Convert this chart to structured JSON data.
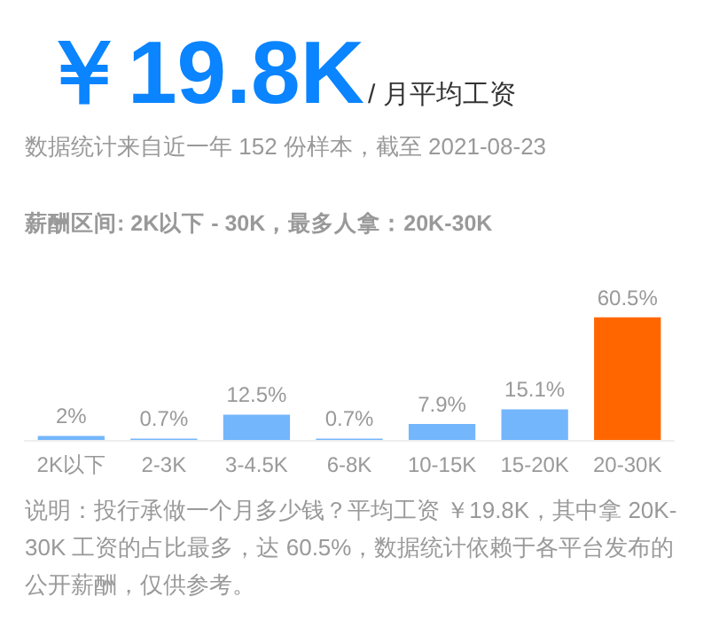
{
  "chart_data": {
    "type": "bar",
    "title": "￥19.8K",
    "subtitle": "/ 月平均工资",
    "annotations": [
      "数据统计来自近一年 152 份样本，截至 2021-08-23",
      "薪酬区间: 2K以下 - 30K，最多人拿：20K-30K",
      "说明：投行承做一个月多少钱？平均工资 ￥19.8K，其中拿 20K-30K 工资的占比最多，达 60.5%，数据统计依赖于各平台发布的公开薪酬，仅供参考。"
    ],
    "categories": [
      "2K以下",
      "2-3K",
      "3-4.5K",
      "6-8K",
      "10-15K",
      "15-20K",
      "20-30K"
    ],
    "values": [
      2,
      0.7,
      12.5,
      0.7,
      7.9,
      15.1,
      60.5
    ],
    "colors": [
      "#74b6fc",
      "#74b6fc",
      "#74b6fc",
      "#74b6fc",
      "#74b6fc",
      "#74b6fc",
      "#ff6600"
    ],
    "value_labels": [
      "2%",
      "0.7%",
      "12.5%",
      "0.7%",
      "7.9%",
      "15.1%",
      "60.5%"
    ],
    "data_labels": false
  }
}
